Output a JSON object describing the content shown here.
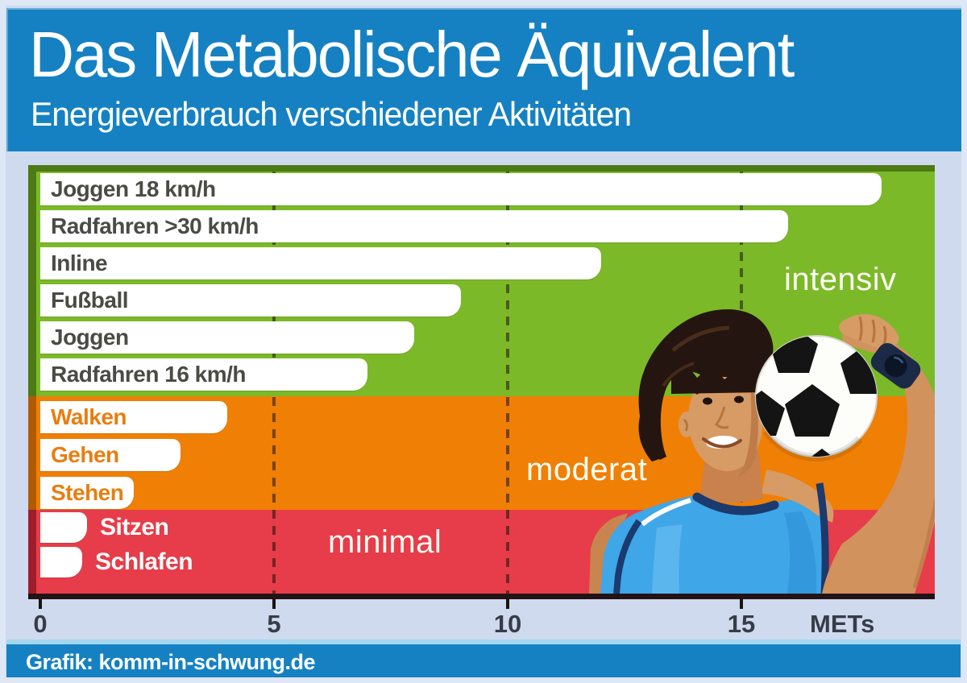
{
  "header": {
    "title": "Das Metabolische Äquivalent",
    "subtitle": "Energieverbrauch verschiedener Aktivitäten"
  },
  "footer": {
    "credit": "Grafik: komm-in-schwung.de"
  },
  "colors": {
    "header_blue": "#1581c2",
    "page_background": "#cfdaee",
    "zone_green": "#7bb928",
    "zone_green_dark": "#4d7a15",
    "zone_orange": "#f07f05",
    "zone_orange_dark": "#b05a03",
    "zone_red": "#e73c49",
    "zone_red_dark": "#9e1d2b",
    "bar_white": "#ffffff",
    "axis_dark": "#231316",
    "tick_label_color": "#373c49"
  },
  "icons": {
    "illustration": "boy-with-soccer-ball"
  },
  "chart_data": {
    "type": "bar",
    "orientation": "horizontal",
    "title": "Das Metabolische Äquivalent",
    "subtitle": "Energieverbrauch verschiedener Aktivitäten",
    "xlabel": "METs",
    "unit": "METs",
    "xlim": [
      0,
      19
    ],
    "grid": "dashed-vertical",
    "gridlines_at": [
      5,
      10,
      15
    ],
    "x_ticks": [
      {
        "label": "0",
        "value": 0
      },
      {
        "label": "5",
        "value": 5
      },
      {
        "label": "10",
        "value": 10
      },
      {
        "label": "15",
        "value": 15
      }
    ],
    "categories": [
      "Joggen 18 km/h",
      "Radfahren >30 km/h",
      "Inline",
      "Fußball",
      "Joggen",
      "Radfahren 16 km/h",
      "Walken",
      "Gehen",
      "Stehen",
      "Sitzen",
      "Schlafen"
    ],
    "values": [
      18,
      16,
      12,
      9,
      8,
      7,
      4,
      3,
      2,
      1,
      0.9
    ],
    "zones": [
      {
        "label": "intensiv",
        "band_color": "#7bb928",
        "band_color_dark": "#4d7a15",
        "bar_text_color": "#4b4b45",
        "items": [
          {
            "label": "Joggen 18 km/h",
            "mets": 18
          },
          {
            "label": "Radfahren >30 km/h",
            "mets": 16
          },
          {
            "label": "Inline",
            "mets": 12
          },
          {
            "label": "Fußball",
            "mets": 9
          },
          {
            "label": "Joggen",
            "mets": 8
          },
          {
            "label": "Radfahren 16 km/h",
            "mets": 7
          }
        ]
      },
      {
        "label": "moderat",
        "band_color": "#f07f05",
        "band_color_dark": "#b05a03",
        "bar_text_color": "#e87e10",
        "items": [
          {
            "label": "Walken",
            "mets": 4
          },
          {
            "label": "Gehen",
            "mets": 3
          },
          {
            "label": "Stehen",
            "mets": 2
          }
        ]
      },
      {
        "label": "minimal",
        "band_color": "#e73c49",
        "band_color_dark": "#9e1d2b",
        "bar_text_color": "#ffffff",
        "items": [
          {
            "label": "Sitzen",
            "mets": 1,
            "label_outside": true
          },
          {
            "label": "Schlafen",
            "mets": 0.9,
            "label_outside": true
          }
        ]
      }
    ]
  }
}
